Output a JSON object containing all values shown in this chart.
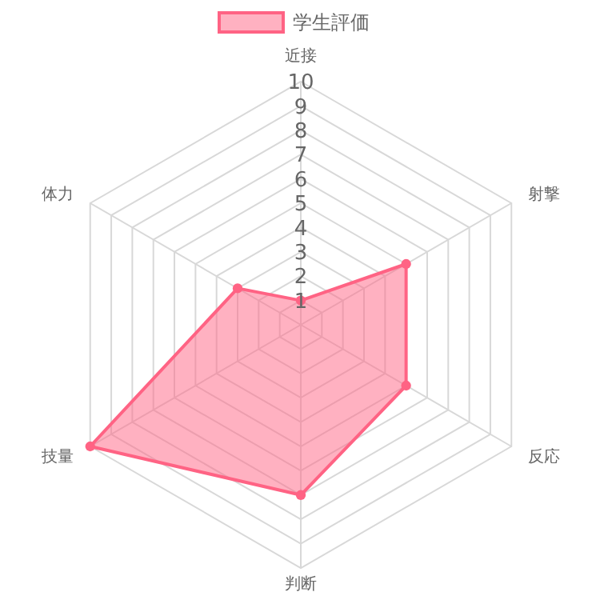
{
  "chart_data": {
    "type": "radar",
    "categories": [
      "近接",
      "射撃",
      "反応",
      "判断",
      "技量",
      "体力"
    ],
    "series": [
      {
        "name": "学生評価",
        "color": "#ff6384",
        "values": [
          1,
          5,
          5,
          7,
          10,
          3
        ]
      }
    ],
    "ylim": [
      0,
      10
    ],
    "yticks": [
      1,
      2,
      3,
      4,
      5,
      6,
      7,
      8,
      9,
      10
    ],
    "grid": true,
    "legend": "top",
    "marker": "circle"
  }
}
